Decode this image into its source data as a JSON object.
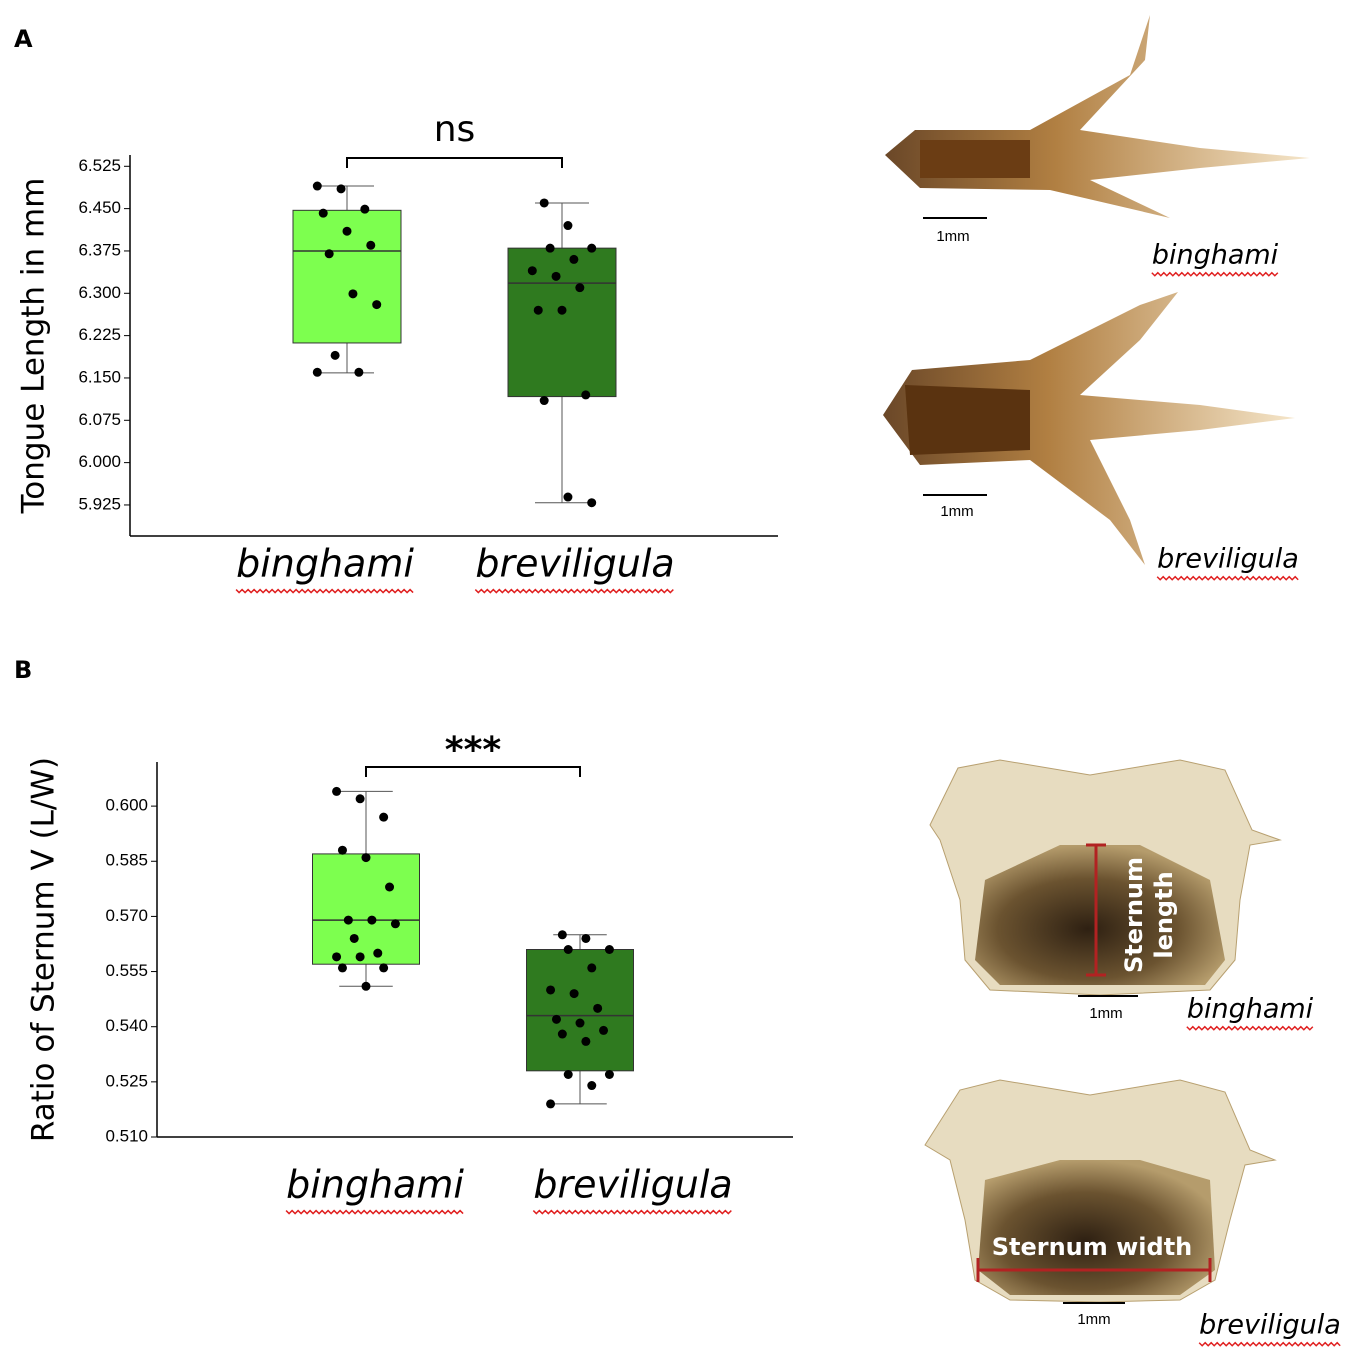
{
  "chart_data": [
    {
      "type": "box",
      "panel": "A",
      "annotation": "ns",
      "ylabel": "Tongue Length in mm",
      "categories": [
        "binghami",
        "breviligula"
      ],
      "colors": [
        "#7dff4f",
        "#2f7a1f"
      ],
      "boxes": [
        {
          "whisker_low": 6.159,
          "q1": 6.212,
          "median": 6.375,
          "q3": 6.447,
          "whisker_high": 6.49,
          "points": [
            6.49,
            6.485,
            6.449,
            6.442,
            6.41,
            6.385,
            6.37,
            6.299,
            6.28,
            6.19,
            6.16,
            6.16
          ]
        },
        {
          "whisker_low": 5.929,
          "q1": 6.117,
          "median": 6.318,
          "q3": 6.38,
          "whisker_high": 6.46,
          "points": [
            6.46,
            6.42,
            6.38,
            6.38,
            6.36,
            6.34,
            6.33,
            6.31,
            6.27,
            6.27,
            6.12,
            6.11,
            5.939,
            5.929
          ]
        }
      ],
      "ylim": [
        5.87,
        6.545
      ],
      "yticks": [
        {
          "value": 5.925,
          "label": "5.925"
        },
        {
          "value": 6,
          "label": "6.000"
        },
        6.075,
        {
          "value": 6.15,
          "label": "6.150"
        },
        6.225,
        {
          "value": 6.3,
          "label": "6.300"
        },
        6.375,
        {
          "value": 6.45,
          "label": "6.450"
        },
        6.525
      ]
    },
    {
      "type": "box",
      "panel": "B",
      "annotation": "***",
      "ylabel": "Ratio of Sternum V (L/W)",
      "categories": [
        "binghami",
        "breviligula"
      ],
      "colors": [
        "#7dff4f",
        "#2f7a1f"
      ],
      "boxes": [
        {
          "whisker_low": 0.551,
          "q1": 0.557,
          "median": 0.569,
          "q3": 0.587,
          "whisker_high": 0.604,
          "points": [
            0.604,
            0.602,
            0.597,
            0.588,
            0.586,
            0.578,
            0.569,
            0.569,
            0.568,
            0.564,
            0.56,
            0.559,
            0.559,
            0.556,
            0.556,
            0.551
          ]
        },
        {
          "whisker_low": 0.519,
          "q1": 0.528,
          "median": 0.543,
          "q3": 0.561,
          "whisker_high": 0.565,
          "points": [
            0.565,
            0.564,
            0.561,
            0.561,
            0.556,
            0.55,
            0.549,
            0.545,
            0.542,
            0.541,
            0.539,
            0.538,
            0.536,
            0.527,
            0.527,
            0.524,
            0.519
          ]
        }
      ],
      "ylim": [
        0.51,
        0.612
      ],
      "yticks": [
        {
          "value": 0.51,
          "label": "0.510"
        },
        0.525,
        {
          "value": 0.54,
          "label": "0.540"
        },
        0.555,
        {
          "value": 0.57,
          "label": "0.570"
        },
        0.585,
        {
          "value": 0.6,
          "label": "0.600"
        }
      ]
    }
  ],
  "images": {
    "tongue": [
      {
        "label": "binghami",
        "scale": "1mm"
      },
      {
        "label": "breviligula",
        "scale": "1mm"
      }
    ],
    "sternum": [
      {
        "label": "binghami",
        "scale": "1mm",
        "measure": [
          "Sternum",
          "length"
        ]
      },
      {
        "label": "breviligula",
        "scale": "1mm",
        "measure": [
          "Sternum width"
        ]
      }
    ]
  }
}
